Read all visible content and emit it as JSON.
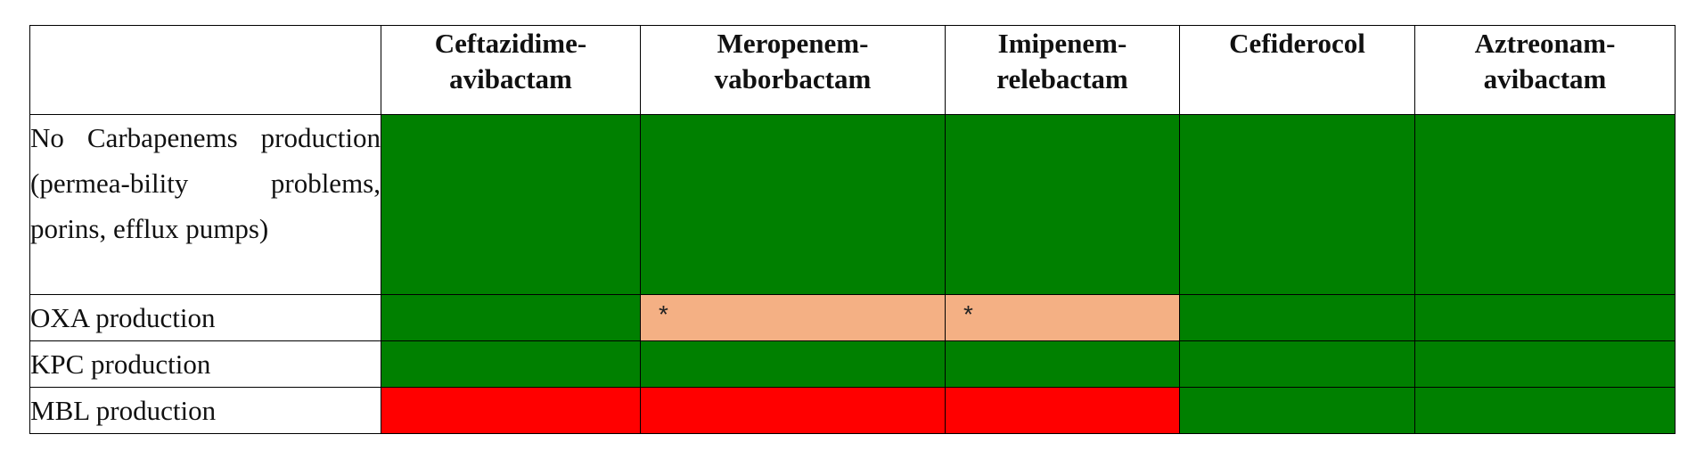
{
  "table": {
    "columns": [
      "Ceftazidime-\navibactam",
      "Meropenem-\nvaborbactam",
      "Imipenem-\nrelebactam",
      "Cefiderocol",
      "Aztreonam-\navibactam"
    ],
    "rows": [
      {
        "label": "No Carbapenems production (permea-bility problems, porins, efflux pumps)",
        "cells": [
          {
            "status": "green",
            "mark": ""
          },
          {
            "status": "green",
            "mark": ""
          },
          {
            "status": "green",
            "mark": ""
          },
          {
            "status": "green",
            "mark": ""
          },
          {
            "status": "green",
            "mark": ""
          }
        ]
      },
      {
        "label": "OXA production",
        "cells": [
          {
            "status": "green",
            "mark": ""
          },
          {
            "status": "orange",
            "mark": "*"
          },
          {
            "status": "orange",
            "mark": "*"
          },
          {
            "status": "green",
            "mark": ""
          },
          {
            "status": "green",
            "mark": ""
          }
        ]
      },
      {
        "label": "KPC production",
        "cells": [
          {
            "status": "green",
            "mark": ""
          },
          {
            "status": "green",
            "mark": ""
          },
          {
            "status": "green",
            "mark": ""
          },
          {
            "status": "green",
            "mark": ""
          },
          {
            "status": "green",
            "mark": ""
          }
        ]
      },
      {
        "label": "MBL production",
        "cells": [
          {
            "status": "red",
            "mark": ""
          },
          {
            "status": "red",
            "mark": ""
          },
          {
            "status": "red",
            "mark": ""
          },
          {
            "status": "green",
            "mark": ""
          },
          {
            "status": "green",
            "mark": ""
          }
        ]
      }
    ],
    "colors": {
      "green": "#008000",
      "orange": "#f4b084",
      "red": "#ff0000"
    }
  }
}
